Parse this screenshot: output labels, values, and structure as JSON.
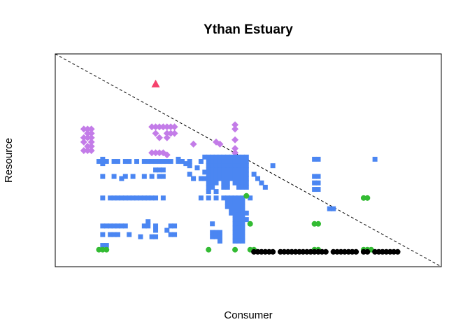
{
  "chart_data": {
    "type": "scatter",
    "title": "Ythan Estuary",
    "xlabel": "Consumer",
    "ylabel": "Resource",
    "x_range": [
      1,
      92
    ],
    "y_range": [
      1,
      92
    ],
    "axes_ticks": "none",
    "grid": false,
    "legend": "none",
    "reference_line": {
      "style": "dashed",
      "color": "#000000",
      "from": [
        0,
        92
      ],
      "to": [
        93,
        0
      ]
    },
    "series": [
      {
        "color": "#f5426c",
        "marker": "triangle",
        "points": [
          [
            22,
            82
          ]
        ]
      },
      {
        "color": "#c37ce8",
        "marker": "diamond",
        "points": [
          [
            3,
            61
          ],
          [
            4,
            61
          ],
          [
            5,
            61
          ],
          [
            4,
            59
          ],
          [
            5,
            59
          ],
          [
            3,
            57
          ],
          [
            4,
            57
          ],
          [
            5,
            57
          ],
          [
            3,
            55
          ],
          [
            5,
            55
          ],
          [
            4,
            53
          ],
          [
            5,
            53
          ],
          [
            3,
            51
          ],
          [
            4,
            51
          ],
          [
            5,
            51
          ],
          [
            21,
            62
          ],
          [
            22,
            62
          ],
          [
            23,
            62
          ],
          [
            24,
            62
          ],
          [
            25,
            62
          ],
          [
            26,
            62
          ],
          [
            27,
            62
          ],
          [
            22,
            59
          ],
          [
            25,
            59
          ],
          [
            26,
            59
          ],
          [
            27,
            59
          ],
          [
            23,
            57
          ],
          [
            25,
            57
          ],
          [
            32,
            54
          ],
          [
            38,
            55
          ],
          [
            39,
            54
          ],
          [
            43,
            56
          ],
          [
            43,
            52
          ],
          [
            43,
            50
          ],
          [
            43,
            63
          ],
          [
            43,
            61
          ],
          [
            21,
            50
          ],
          [
            22,
            50
          ],
          [
            23,
            50
          ],
          [
            24,
            50
          ],
          [
            25,
            49
          ]
        ]
      },
      {
        "color": "#4b86f2",
        "marker": "square",
        "points": [
          [
            8,
            47
          ],
          [
            7,
            46
          ],
          [
            8,
            45
          ],
          [
            9,
            46
          ],
          [
            11,
            46
          ],
          [
            12,
            46
          ],
          [
            14,
            46
          ],
          [
            15,
            46
          ],
          [
            17,
            46
          ],
          [
            19,
            46
          ],
          [
            20,
            46
          ],
          [
            21,
            46
          ],
          [
            22,
            46
          ],
          [
            23,
            46
          ],
          [
            24,
            46
          ],
          [
            25,
            46
          ],
          [
            26,
            46
          ],
          [
            28,
            46
          ],
          [
            29,
            46
          ],
          [
            22,
            42
          ],
          [
            23,
            42
          ],
          [
            24,
            42
          ],
          [
            23,
            39
          ],
          [
            24,
            39
          ],
          [
            8,
            39
          ],
          [
            11,
            39
          ],
          [
            13,
            38
          ],
          [
            14,
            39
          ],
          [
            16,
            39
          ],
          [
            19,
            39
          ],
          [
            21,
            39
          ],
          [
            8,
            29
          ],
          [
            10,
            29
          ],
          [
            11,
            29
          ],
          [
            12,
            29
          ],
          [
            13,
            29
          ],
          [
            14,
            29
          ],
          [
            15,
            29
          ],
          [
            16,
            29
          ],
          [
            17,
            29
          ],
          [
            18,
            29
          ],
          [
            19,
            29
          ],
          [
            20,
            29
          ],
          [
            21,
            29
          ],
          [
            22,
            29
          ],
          [
            24,
            29
          ],
          [
            8,
            16
          ],
          [
            9,
            16
          ],
          [
            10,
            16
          ],
          [
            11,
            16
          ],
          [
            12,
            16
          ],
          [
            13,
            16
          ],
          [
            14,
            16
          ],
          [
            19,
            16
          ],
          [
            20,
            16
          ],
          [
            22,
            16
          ],
          [
            8,
            12
          ],
          [
            10,
            12
          ],
          [
            11,
            12
          ],
          [
            12,
            12
          ],
          [
            15,
            12
          ],
          [
            18,
            11
          ],
          [
            21,
            11
          ],
          [
            22,
            11
          ],
          [
            26,
            12
          ],
          [
            27,
            12
          ],
          [
            26,
            16
          ],
          [
            27,
            16
          ],
          [
            8,
            7
          ],
          [
            9,
            7
          ],
          [
            20,
            18
          ],
          [
            22,
            14
          ],
          [
            25,
            14
          ],
          [
            28,
            47
          ],
          [
            29,
            46
          ],
          [
            30,
            45
          ],
          [
            31,
            46
          ],
          [
            31,
            44
          ],
          [
            31,
            40
          ],
          [
            33,
            43
          ],
          [
            35,
            41
          ],
          [
            34,
            46
          ],
          [
            35,
            48
          ],
          [
            36,
            48
          ],
          [
            37,
            48
          ],
          [
            38,
            48
          ],
          [
            39,
            48
          ],
          [
            40,
            48
          ],
          [
            41,
            48
          ],
          [
            42,
            48
          ],
          [
            43,
            48
          ],
          [
            44,
            48
          ],
          [
            45,
            48
          ],
          [
            46,
            48
          ],
          [
            36,
            46
          ],
          [
            37,
            46
          ],
          [
            38,
            46
          ],
          [
            39,
            46
          ],
          [
            40,
            46
          ],
          [
            41,
            46
          ],
          [
            42,
            46
          ],
          [
            43,
            46
          ],
          [
            44,
            46
          ],
          [
            45,
            46
          ],
          [
            46,
            46
          ],
          [
            36,
            44
          ],
          [
            37,
            44
          ],
          [
            38,
            44
          ],
          [
            39,
            44
          ],
          [
            40,
            44
          ],
          [
            41,
            44
          ],
          [
            42,
            44
          ],
          [
            43,
            44
          ],
          [
            44,
            44
          ],
          [
            45,
            44
          ],
          [
            46,
            44
          ],
          [
            36,
            42
          ],
          [
            37,
            42
          ],
          [
            38,
            42
          ],
          [
            39,
            42
          ],
          [
            40,
            42
          ],
          [
            41,
            42
          ],
          [
            42,
            42
          ],
          [
            43,
            42
          ],
          [
            44,
            42
          ],
          [
            45,
            42
          ],
          [
            46,
            42
          ],
          [
            36,
            40
          ],
          [
            37,
            40
          ],
          [
            38,
            40
          ],
          [
            39,
            40
          ],
          [
            40,
            40
          ],
          [
            41,
            40
          ],
          [
            42,
            40
          ],
          [
            43,
            40
          ],
          [
            44,
            40
          ],
          [
            45,
            40
          ],
          [
            46,
            40
          ],
          [
            36,
            38
          ],
          [
            37,
            38
          ],
          [
            38,
            38
          ],
          [
            39,
            38
          ],
          [
            40,
            38
          ],
          [
            41,
            38
          ],
          [
            42,
            38
          ],
          [
            43,
            38
          ],
          [
            44,
            38
          ],
          [
            45,
            38
          ],
          [
            46,
            38
          ],
          [
            36,
            36
          ],
          [
            37,
            36
          ],
          [
            38,
            36
          ],
          [
            40,
            36
          ],
          [
            41,
            36
          ],
          [
            43,
            36
          ],
          [
            44,
            36
          ],
          [
            45,
            36
          ],
          [
            46,
            36
          ],
          [
            36,
            34
          ],
          [
            37,
            34
          ],
          [
            40,
            34
          ],
          [
            41,
            34
          ],
          [
            44,
            34
          ],
          [
            45,
            34
          ],
          [
            46,
            34
          ],
          [
            32,
            38
          ],
          [
            34,
            38
          ],
          [
            35,
            38
          ],
          [
            36,
            32
          ],
          [
            38,
            32
          ],
          [
            34,
            29
          ],
          [
            36,
            29
          ],
          [
            38,
            29
          ],
          [
            40,
            29
          ],
          [
            41,
            29
          ],
          [
            42,
            29
          ],
          [
            43,
            29
          ],
          [
            44,
            29
          ],
          [
            45,
            29
          ],
          [
            47,
            29
          ],
          [
            41,
            27
          ],
          [
            42,
            27
          ],
          [
            43,
            27
          ],
          [
            44,
            27
          ],
          [
            45,
            27
          ],
          [
            41,
            25
          ],
          [
            42,
            25
          ],
          [
            43,
            25
          ],
          [
            44,
            25
          ],
          [
            45,
            25
          ],
          [
            43,
            23
          ],
          [
            44,
            23
          ],
          [
            45,
            23
          ],
          [
            43,
            21
          ],
          [
            44,
            21
          ],
          [
            45,
            21
          ],
          [
            43,
            19
          ],
          [
            44,
            19
          ],
          [
            45,
            19
          ],
          [
            43,
            17
          ],
          [
            44,
            17
          ],
          [
            45,
            17
          ],
          [
            43,
            15
          ],
          [
            44,
            15
          ],
          [
            45,
            15
          ],
          [
            43,
            13
          ],
          [
            44,
            13
          ],
          [
            45,
            13
          ],
          [
            43,
            11
          ],
          [
            44,
            11
          ],
          [
            45,
            11
          ],
          [
            42,
            24
          ],
          [
            42,
            22
          ],
          [
            46,
            22
          ],
          [
            46,
            19
          ],
          [
            37,
            17
          ],
          [
            37,
            13
          ],
          [
            37,
            11
          ],
          [
            38,
            11
          ],
          [
            39,
            11
          ],
          [
            38,
            13
          ],
          [
            39,
            13
          ],
          [
            39,
            9
          ],
          [
            43,
            9
          ],
          [
            44,
            9
          ],
          [
            45,
            9
          ],
          [
            48,
            40
          ],
          [
            49,
            38
          ],
          [
            50,
            36
          ],
          [
            51,
            34
          ],
          [
            53,
            44
          ],
          [
            64,
            47
          ],
          [
            65,
            47
          ],
          [
            64,
            39
          ],
          [
            65,
            39
          ],
          [
            64,
            36
          ],
          [
            65,
            36
          ],
          [
            64,
            33
          ],
          [
            65,
            33
          ],
          [
            68,
            24
          ],
          [
            69,
            24
          ],
          [
            80,
            47
          ]
        ]
      },
      {
        "color": "#33bb33",
        "marker": "circle",
        "points": [
          [
            7,
            5
          ],
          [
            8,
            5
          ],
          [
            9,
            5
          ],
          [
            36,
            5
          ],
          [
            43,
            5
          ],
          [
            47,
            5
          ],
          [
            48,
            5
          ],
          [
            46,
            30
          ],
          [
            47,
            17
          ],
          [
            64,
            5
          ],
          [
            65,
            5
          ],
          [
            64,
            17
          ],
          [
            65,
            17
          ],
          [
            77,
            29
          ],
          [
            78,
            29
          ],
          [
            77,
            5
          ],
          [
            78,
            5
          ],
          [
            79,
            5
          ]
        ]
      },
      {
        "color": "#000000",
        "marker": "circle",
        "points": [
          [
            48,
            4
          ],
          [
            49,
            4
          ],
          [
            50,
            4
          ],
          [
            51,
            4
          ],
          [
            52,
            4
          ],
          [
            53,
            4
          ],
          [
            55,
            4
          ],
          [
            56,
            4
          ],
          [
            57,
            4
          ],
          [
            58,
            4
          ],
          [
            59,
            4
          ],
          [
            60,
            4
          ],
          [
            61,
            4
          ],
          [
            62,
            4
          ],
          [
            63,
            4
          ],
          [
            64,
            4
          ],
          [
            65,
            4
          ],
          [
            66,
            4
          ],
          [
            67,
            4
          ],
          [
            69,
            4
          ],
          [
            70,
            4
          ],
          [
            71,
            4
          ],
          [
            72,
            4
          ],
          [
            73,
            4
          ],
          [
            74,
            4
          ],
          [
            75,
            4
          ],
          [
            77,
            4
          ],
          [
            78,
            4
          ],
          [
            80,
            4
          ],
          [
            81,
            4
          ],
          [
            82,
            4
          ],
          [
            83,
            4
          ],
          [
            84,
            4
          ],
          [
            85,
            4
          ],
          [
            86,
            4
          ]
        ]
      }
    ]
  }
}
